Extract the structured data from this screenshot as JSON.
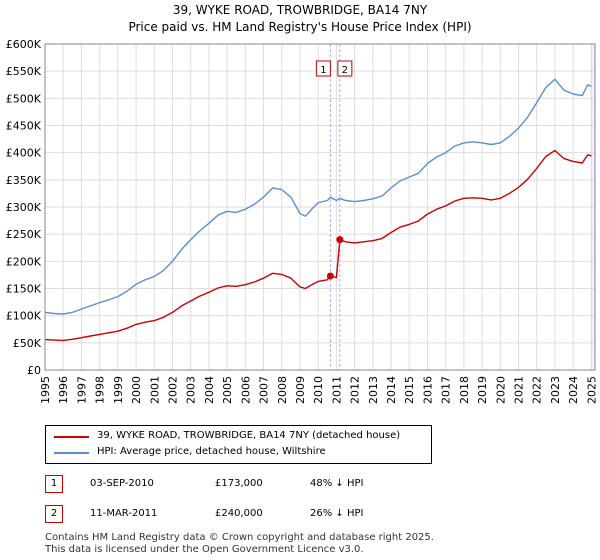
{
  "title": "39, WYKE ROAD, TROWBRIDGE, BA14 7NY",
  "subtitle": "Price paid vs. HM Land Registry's House Price Index (HPI)",
  "chart_data": {
    "type": "line",
    "title": "39, WYKE ROAD, TROWBRIDGE, BA14 7NY",
    "subtitle": "Price paid vs. HM Land Registry's House Price Index (HPI)",
    "xlim": [
      1995,
      2025.2
    ],
    "ylim": [
      0,
      600000
    ],
    "x_ticks": [
      "1995",
      "1996",
      "1997",
      "1998",
      "1999",
      "2000",
      "2001",
      "2002",
      "2003",
      "2004",
      "2005",
      "2006",
      "2007",
      "2008",
      "2009",
      "2010",
      "2011",
      "2012",
      "2013",
      "2014",
      "2015",
      "2016",
      "2017",
      "2018",
      "2019",
      "2020",
      "2021",
      "2022",
      "2023",
      "2024",
      "2025"
    ],
    "y_ticks": [
      {
        "value": 0,
        "label": "£0"
      },
      {
        "value": 50000,
        "label": "£50K"
      },
      {
        "value": 100000,
        "label": "£100K"
      },
      {
        "value": 150000,
        "label": "£150K"
      },
      {
        "value": 200000,
        "label": "£200K"
      },
      {
        "value": 250000,
        "label": "£250K"
      },
      {
        "value": 300000,
        "label": "£300K"
      },
      {
        "value": 350000,
        "label": "£350K"
      },
      {
        "value": 400000,
        "label": "£400K"
      },
      {
        "value": 450000,
        "label": "£450K"
      },
      {
        "value": 500000,
        "label": "£500K"
      },
      {
        "value": 550000,
        "label": "£550K"
      },
      {
        "value": 600000,
        "label": "£600K"
      }
    ],
    "grid": true,
    "series": [
      {
        "name": "HPI: Average price, detached house, Wiltshire",
        "color": "#5b8fd0",
        "points": [
          [
            1995.0,
            106000
          ],
          [
            1995.5,
            104000
          ],
          [
            1996.0,
            103000
          ],
          [
            1996.5,
            106000
          ],
          [
            1997.0,
            112000
          ],
          [
            1997.5,
            118000
          ],
          [
            1998.0,
            124000
          ],
          [
            1998.5,
            129000
          ],
          [
            1999.0,
            135000
          ],
          [
            1999.5,
            145000
          ],
          [
            2000.0,
            158000
          ],
          [
            2000.5,
            166000
          ],
          [
            2001.0,
            172000
          ],
          [
            2001.5,
            183000
          ],
          [
            2002.0,
            200000
          ],
          [
            2002.5,
            222000
          ],
          [
            2003.0,
            240000
          ],
          [
            2003.5,
            256000
          ],
          [
            2004.0,
            270000
          ],
          [
            2004.5,
            285000
          ],
          [
            2005.0,
            292000
          ],
          [
            2005.5,
            290000
          ],
          [
            2006.0,
            296000
          ],
          [
            2006.5,
            305000
          ],
          [
            2007.0,
            318000
          ],
          [
            2007.5,
            335000
          ],
          [
            2008.0,
            332000
          ],
          [
            2008.5,
            318000
          ],
          [
            2009.0,
            288000
          ],
          [
            2009.3,
            283000
          ],
          [
            2009.7,
            298000
          ],
          [
            2010.0,
            308000
          ],
          [
            2010.5,
            312000
          ],
          [
            2010.67,
            318000
          ],
          [
            2011.0,
            312000
          ],
          [
            2011.2,
            316000
          ],
          [
            2011.5,
            312000
          ],
          [
            2012.0,
            310000
          ],
          [
            2012.5,
            312000
          ],
          [
            2013.0,
            315000
          ],
          [
            2013.5,
            320000
          ],
          [
            2014.0,
            335000
          ],
          [
            2014.5,
            348000
          ],
          [
            2015.0,
            355000
          ],
          [
            2015.5,
            362000
          ],
          [
            2016.0,
            380000
          ],
          [
            2016.5,
            392000
          ],
          [
            2017.0,
            400000
          ],
          [
            2017.5,
            412000
          ],
          [
            2018.0,
            418000
          ],
          [
            2018.5,
            420000
          ],
          [
            2019.0,
            418000
          ],
          [
            2019.5,
            415000
          ],
          [
            2020.0,
            418000
          ],
          [
            2020.5,
            430000
          ],
          [
            2021.0,
            445000
          ],
          [
            2021.5,
            465000
          ],
          [
            2022.0,
            492000
          ],
          [
            2022.5,
            520000
          ],
          [
            2023.0,
            535000
          ],
          [
            2023.5,
            515000
          ],
          [
            2024.0,
            508000
          ],
          [
            2024.5,
            505000
          ],
          [
            2024.8,
            525000
          ],
          [
            2025.0,
            522000
          ]
        ]
      },
      {
        "name": "39, WYKE ROAD, TROWBRIDGE, BA14 7NY (detached house)",
        "color": "#cc0000",
        "points": [
          [
            1995.0,
            56000
          ],
          [
            1995.5,
            55000
          ],
          [
            1996.0,
            54500
          ],
          [
            1996.5,
            56500
          ],
          [
            1997.0,
            59500
          ],
          [
            1997.5,
            62500
          ],
          [
            1998.0,
            65500
          ],
          [
            1998.5,
            68500
          ],
          [
            1999.0,
            71500
          ],
          [
            1999.5,
            77000
          ],
          [
            2000.0,
            84000
          ],
          [
            2000.5,
            88000
          ],
          [
            2001.0,
            91000
          ],
          [
            2001.5,
            97000
          ],
          [
            2002.0,
            106000
          ],
          [
            2002.5,
            118000
          ],
          [
            2003.0,
            127000
          ],
          [
            2003.5,
            136000
          ],
          [
            2004.0,
            143000
          ],
          [
            2004.5,
            151000
          ],
          [
            2005.0,
            155000
          ],
          [
            2005.5,
            154000
          ],
          [
            2006.0,
            157000
          ],
          [
            2006.5,
            162000
          ],
          [
            2007.0,
            169000
          ],
          [
            2007.5,
            178000
          ],
          [
            2008.0,
            176000
          ],
          [
            2008.5,
            169000
          ],
          [
            2009.0,
            153000
          ],
          [
            2009.3,
            150000
          ],
          [
            2009.7,
            158000
          ],
          [
            2010.0,
            163000
          ],
          [
            2010.5,
            166000
          ],
          [
            2010.67,
            173000
          ],
          [
            2011.0,
            170000
          ],
          [
            2011.19,
            240000
          ],
          [
            2011.5,
            236000
          ],
          [
            2012.0,
            234000
          ],
          [
            2012.5,
            236000
          ],
          [
            2013.0,
            238000
          ],
          [
            2013.5,
            242000
          ],
          [
            2014.0,
            253000
          ],
          [
            2014.5,
            263000
          ],
          [
            2015.0,
            268000
          ],
          [
            2015.5,
            274000
          ],
          [
            2016.0,
            287000
          ],
          [
            2016.5,
            296000
          ],
          [
            2017.0,
            302000
          ],
          [
            2017.5,
            311000
          ],
          [
            2018.0,
            316000
          ],
          [
            2018.5,
            317000
          ],
          [
            2019.0,
            316000
          ],
          [
            2019.5,
            313000
          ],
          [
            2020.0,
            316000
          ],
          [
            2020.5,
            325000
          ],
          [
            2021.0,
            336000
          ],
          [
            2021.5,
            351000
          ],
          [
            2022.0,
            371000
          ],
          [
            2022.5,
            393000
          ],
          [
            2023.0,
            404000
          ],
          [
            2023.5,
            389000
          ],
          [
            2024.0,
            384000
          ],
          [
            2024.5,
            381000
          ],
          [
            2024.8,
            396000
          ],
          [
            2025.0,
            394000
          ]
        ]
      }
    ],
    "sales": [
      {
        "marker": "1",
        "x": 2010.67,
        "price": 173000
      },
      {
        "marker": "2",
        "x": 2011.19,
        "price": 240000
      }
    ],
    "shaded_end_from": 2024.95
  },
  "legend": {
    "property_label": "39, WYKE ROAD, TROWBRIDGE, BA14 7NY (detached house)",
    "hpi_label": "HPI: Average price, detached house, Wiltshire"
  },
  "sales_table": [
    {
      "num": "1",
      "date": "03-SEP-2010",
      "price": "£173,000",
      "hpi": "48% ↓ HPI"
    },
    {
      "num": "2",
      "date": "11-MAR-2011",
      "price": "£240,000",
      "hpi": "26% ↓ HPI"
    }
  ],
  "footer": {
    "line1": "Contains HM Land Registry data © Crown copyright and database right 2025.",
    "line2": "This data is licensed under the Open Government Licence v3.0."
  },
  "colors": {
    "property": "#cc0000",
    "hpi": "#5b8fd0",
    "grid": "#dddddd",
    "vline": "#aaaaff",
    "shade": "#eef0ff"
  }
}
